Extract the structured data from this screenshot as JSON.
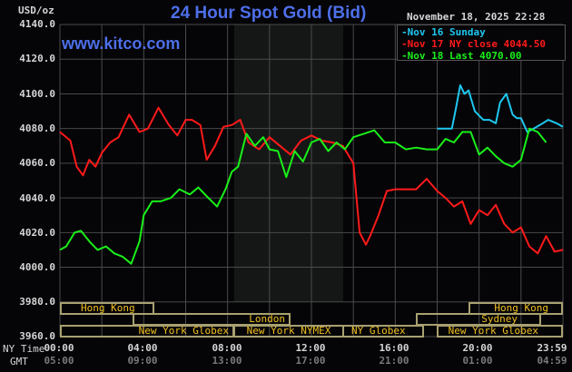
{
  "header": {
    "title": "24 Hour Spot Gold (Bid)",
    "site": "www.kitco.com",
    "units": "USD/oz",
    "datestamp": "November 18, 2025 22:28"
  },
  "legend": {
    "items": [
      {
        "label": "Nov 16 Sunday",
        "color": "#1ec8f0"
      },
      {
        "label": "Nov 17 NY close 4044.50",
        "color": "#ff1a1a"
      },
      {
        "label": "Nov 18 Last 4070.00",
        "color": "#19f019"
      }
    ]
  },
  "yaxis": {
    "ticks": [
      "4140.0",
      "4120.0",
      "4100.0",
      "4080.0",
      "4060.0",
      "4040.0",
      "4020.0",
      "4000.0",
      "3980.0",
      "3960.0"
    ]
  },
  "xaxis": {
    "ny_label": "NY Time",
    "gmt_label": "GMT",
    "ny_ticks": [
      "00:00",
      "04:00",
      "08:00",
      "12:00",
      "16:00",
      "20:00",
      "23:59"
    ],
    "gmt_ticks": [
      "05:00",
      "09:00",
      "13:00",
      "17:00",
      "21:00",
      "01:00",
      "04:59"
    ]
  },
  "sessions": {
    "hong_kong_1": "Hong Kong",
    "london": "London",
    "ny_globex_1": "New York Globex",
    "ny_nymex": "New York NYMEX",
    "ny_globex_2": "NY Globex",
    "hong_kong_2": "Hong Kong",
    "sydney": "Sydney",
    "ny_globex_3": "New York Globex"
  },
  "chart_data": {
    "type": "line",
    "title": "24 Hour Spot Gold (Bid)",
    "xlabel": "NY Time / GMT",
    "ylabel": "USD/oz",
    "ylim": [
      3960,
      4140
    ],
    "xlim_hours": [
      0,
      24
    ],
    "grid": true,
    "legend_position": "top-right",
    "shaded_region_hours": [
      8.4,
      13.6
    ],
    "series": [
      {
        "name": "Nov 16 Sunday",
        "color": "#1ec8f0",
        "x": [
          18.0,
          18.6,
          18.7,
          18.9,
          19.1,
          19.3,
          19.5,
          19.8,
          20.2,
          20.5,
          20.8,
          21.0,
          21.3,
          21.6,
          21.8,
          22.0,
          22.3,
          22.6,
          22.9,
          23.3,
          23.7,
          24.0
        ],
        "y": [
          4080,
          4080,
          4080,
          4092,
          4105,
          4100,
          4102,
          4090,
          4085,
          4085,
          4083,
          4095,
          4100,
          4088,
          4086,
          4086,
          4078,
          4080,
          4082,
          4085,
          4083,
          4081
        ]
      },
      {
        "name": "Nov 17 NY close 4044.50",
        "color": "#ff1a1a",
        "x": [
          0,
          0.5,
          0.8,
          1.1,
          1.4,
          1.7,
          2.0,
          2.4,
          2.8,
          3.3,
          3.8,
          4.2,
          4.7,
          5.2,
          5.6,
          6.0,
          6.3,
          6.7,
          7.0,
          7.4,
          7.8,
          8.2,
          8.6,
          9.0,
          9.5,
          10.0,
          10.5,
          11.0,
          11.5,
          12.0,
          12.5,
          13.0,
          13.5,
          14.0,
          14.3,
          14.6,
          14.8,
          15.2,
          15.6,
          16.0,
          16.5,
          17.0,
          17.5,
          18.0,
          18.4,
          18.8,
          19.2,
          19.6,
          20.0,
          20.4,
          20.8,
          21.2,
          21.6,
          22.0,
          22.4,
          22.8,
          23.2,
          23.6,
          24.0
        ],
        "y": [
          4078,
          4073,
          4058,
          4053,
          4062,
          4058,
          4066,
          4072,
          4075,
          4088,
          4078,
          4080,
          4092,
          4082,
          4076,
          4085,
          4085,
          4082,
          4062,
          4070,
          4081,
          4082,
          4085,
          4072,
          4068,
          4075,
          4070,
          4065,
          4073,
          4076,
          4073,
          4072,
          4070,
          4060,
          4020,
          4013,
          4018,
          4030,
          4044,
          4045,
          4045,
          4045,
          4051,
          4044,
          4040,
          4035,
          4038,
          4025,
          4033,
          4030,
          4036,
          4025,
          4020,
          4023,
          4012,
          4008,
          4018,
          4009,
          4010
        ]
      },
      {
        "name": "Nov 18 Last 4070.00",
        "color": "#19f019",
        "x": [
          0,
          0.3,
          0.7,
          1.0,
          1.4,
          1.8,
          2.2,
          2.6,
          3.0,
          3.4,
          3.8,
          4.0,
          4.4,
          4.8,
          5.3,
          5.7,
          6.2,
          6.6,
          7.0,
          7.5,
          7.9,
          8.2,
          8.5,
          8.9,
          9.3,
          9.7,
          10.0,
          10.4,
          10.8,
          11.2,
          11.6,
          12.0,
          12.4,
          12.8,
          13.2,
          13.6,
          14.0,
          14.5,
          15.0,
          15.5,
          16.0,
          16.5,
          17.0,
          17.5,
          18.0,
          18.4,
          18.8,
          19.2,
          19.6,
          20.0,
          20.4,
          20.8,
          21.2,
          21.6,
          22.0,
          22.4,
          22.8,
          23.2
        ],
        "y": [
          4010,
          4012,
          4020,
          4021,
          4015,
          4010,
          4012,
          4008,
          4006,
          4002,
          4015,
          4030,
          4038,
          4038,
          4040,
          4045,
          4042,
          4046,
          4041,
          4035,
          4045,
          4055,
          4058,
          4077,
          4070,
          4075,
          4068,
          4067,
          4052,
          4067,
          4061,
          4072,
          4074,
          4067,
          4072,
          4068,
          4075,
          4077,
          4079,
          4072,
          4072,
          4068,
          4069,
          4068,
          4068,
          4074,
          4072,
          4078,
          4078,
          4065,
          4069,
          4064,
          4060,
          4058,
          4062,
          4080,
          4078,
          4072
        ]
      }
    ]
  }
}
